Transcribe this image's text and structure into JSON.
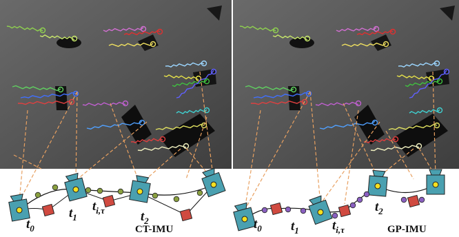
{
  "panels": [
    {
      "labels": [
        {
          "main": "t",
          "sub": "0"
        },
        {
          "main": "t",
          "sub": "1"
        },
        {
          "main": "t",
          "sub": "i,τ"
        },
        {
          "main": "t",
          "sub": "2"
        }
      ],
      "method": "CT-IMU"
    },
    {
      "labels": [
        {
          "main": "t",
          "sub": "0"
        },
        {
          "main": "t",
          "sub": "1"
        },
        {
          "main": "t",
          "sub": "i,τ"
        },
        {
          "main": "t",
          "sub": "2"
        }
      ],
      "method": "GP-IMU"
    }
  ]
}
